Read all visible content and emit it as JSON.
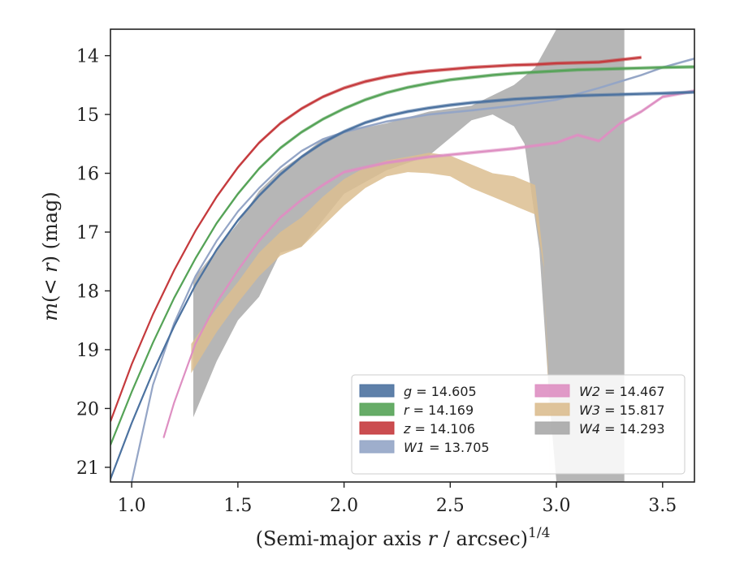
{
  "chart_data": {
    "type": "line",
    "title": "",
    "xlabel": "(Semi-major axis r / arcsec)",
    "xlabel_prefix": "(Semi-major axis ",
    "xlabel_r": "r",
    "xlabel_suffix": " / arcsec)",
    "xlabel_sup": "1/4",
    "ylabel": "m(< r) (mag)",
    "ylabel_m": "m",
    "ylabel_mid": "(< ",
    "ylabel_r": "r",
    "ylabel_end": ") (mag)",
    "xlim": [
      0.9,
      3.65
    ],
    "ylim": [
      21.25,
      13.55
    ],
    "y_inverted": true,
    "xticks": [
      1.0,
      1.5,
      2.0,
      2.5,
      3.0,
      3.5
    ],
    "xtick_labels": [
      "1.0",
      "1.5",
      "2.0",
      "2.5",
      "3.0",
      "3.5"
    ],
    "yticks": [
      14,
      15,
      16,
      17,
      18,
      19,
      20,
      21
    ],
    "ytick_labels": [
      "14",
      "15",
      "16",
      "17",
      "18",
      "19",
      "20",
      "21"
    ],
    "grid": false,
    "legend_position": "lower-right",
    "legend": [
      {
        "band": "g",
        "value": "14.605",
        "color": "#4c72a0",
        "column": 0
      },
      {
        "band": "r",
        "value": "14.169",
        "color": "#55a357",
        "column": 0
      },
      {
        "band": "z",
        "value": "14.106",
        "color": "#c53a3d",
        "column": 0
      },
      {
        "band": "W1",
        "value": "13.705",
        "color": "#94a5c6",
        "column": 0
      },
      {
        "band": "W2",
        "value": "14.467",
        "color": "#de8fc2",
        "column": 1
      },
      {
        "band": "W3",
        "value": "15.817",
        "color": "#dcbe90",
        "column": 1
      },
      {
        "band": "W4",
        "value": "14.293",
        "color": "#a9a9a9",
        "column": 1
      }
    ],
    "series": [
      {
        "name": "g = 14.605",
        "color": "#4c72a0",
        "band_halfwidth": 0.03,
        "x": [
          0.9,
          1.0,
          1.1,
          1.2,
          1.3,
          1.4,
          1.5,
          1.6,
          1.7,
          1.8,
          1.9,
          2.0,
          2.1,
          2.2,
          2.3,
          2.4,
          2.5,
          2.6,
          2.7,
          2.8,
          2.9,
          3.0,
          3.1,
          3.2,
          3.3,
          3.4,
          3.5,
          3.65
        ],
        "y": [
          21.2,
          20.25,
          19.38,
          18.6,
          17.9,
          17.3,
          16.8,
          16.38,
          16.02,
          15.72,
          15.48,
          15.29,
          15.14,
          15.03,
          14.95,
          14.89,
          14.84,
          14.8,
          14.77,
          14.74,
          14.72,
          14.7,
          14.68,
          14.67,
          14.66,
          14.65,
          14.64,
          14.62
        ]
      },
      {
        "name": "r = 14.169",
        "color": "#55a357",
        "band_halfwidth": 0.03,
        "x": [
          0.9,
          1.0,
          1.1,
          1.2,
          1.3,
          1.4,
          1.5,
          1.6,
          1.7,
          1.8,
          1.9,
          2.0,
          2.1,
          2.2,
          2.3,
          2.4,
          2.5,
          2.6,
          2.7,
          2.8,
          2.9,
          3.0,
          3.1,
          3.2,
          3.3,
          3.4,
          3.5,
          3.65
        ],
        "y": [
          20.62,
          19.72,
          18.88,
          18.12,
          17.45,
          16.85,
          16.35,
          15.92,
          15.57,
          15.3,
          15.08,
          14.9,
          14.75,
          14.63,
          14.54,
          14.47,
          14.41,
          14.37,
          14.33,
          14.3,
          14.28,
          14.26,
          14.24,
          14.23,
          14.22,
          14.21,
          14.2,
          14.19
        ]
      },
      {
        "name": "z = 14.106",
        "color": "#c53a3d",
        "band_halfwidth": 0.03,
        "x": [
          0.9,
          1.0,
          1.1,
          1.2,
          1.3,
          1.4,
          1.5,
          1.6,
          1.7,
          1.8,
          1.9,
          2.0,
          2.1,
          2.2,
          2.3,
          2.4,
          2.5,
          2.6,
          2.7,
          2.8,
          2.9,
          3.0,
          3.1,
          3.2,
          3.3,
          3.4
        ],
        "y": [
          20.22,
          19.25,
          18.4,
          17.65,
          16.98,
          16.4,
          15.9,
          15.48,
          15.15,
          14.9,
          14.7,
          14.55,
          14.44,
          14.36,
          14.3,
          14.26,
          14.23,
          14.2,
          14.18,
          14.16,
          14.15,
          14.13,
          14.12,
          14.11,
          14.07,
          14.03
        ]
      },
      {
        "name": "W1 = 13.705",
        "color": "#94a5c6",
        "band_halfwidth": 0.02,
        "x": [
          1.0,
          1.1,
          1.2,
          1.3,
          1.4,
          1.5,
          1.6,
          1.7,
          1.8,
          1.9,
          2.0,
          2.2,
          2.4,
          2.6,
          2.8,
          3.0,
          3.2,
          3.4,
          3.5,
          3.65
        ],
        "y": [
          21.25,
          19.6,
          18.55,
          17.75,
          17.15,
          16.65,
          16.25,
          15.9,
          15.62,
          15.42,
          15.3,
          15.12,
          15.0,
          14.93,
          14.85,
          14.75,
          14.55,
          14.33,
          14.2,
          14.05
        ]
      },
      {
        "name": "W2 = 14.467",
        "color": "#de8fc2",
        "band_halfwidth": 0.03,
        "x": [
          1.15,
          1.2,
          1.3,
          1.4,
          1.5,
          1.6,
          1.7,
          1.8,
          1.9,
          2.0,
          2.2,
          2.4,
          2.6,
          2.8,
          3.0,
          3.1,
          3.2,
          3.3,
          3.4,
          3.5,
          3.65
        ],
        "y": [
          20.5,
          19.9,
          18.9,
          18.2,
          17.65,
          17.15,
          16.75,
          16.45,
          16.2,
          15.98,
          15.82,
          15.72,
          15.65,
          15.58,
          15.48,
          15.35,
          15.45,
          15.15,
          14.95,
          14.7,
          14.6
        ]
      },
      {
        "name": "W3 = 15.817",
        "color": "#dcbe90",
        "band_halfwidth": 0.0,
        "x": [
          1.28,
          1.4,
          1.5,
          1.6,
          1.7,
          1.8,
          1.9,
          2.0,
          2.1,
          2.2,
          2.3,
          2.4,
          2.5,
          2.6,
          2.7,
          2.8,
          2.9,
          2.94,
          2.96,
          2.97,
          2.97,
          2.96,
          2.94,
          2.9,
          2.8,
          2.7,
          2.6,
          2.5,
          2.4,
          2.3,
          2.2,
          2.1,
          2.0,
          1.9,
          1.8,
          1.7,
          1.6,
          1.5,
          1.4,
          1.28
        ],
        "y": [
          18.9,
          18.3,
          17.85,
          17.35,
          17.0,
          16.75,
          16.4,
          16.1,
          15.9,
          15.78,
          15.72,
          15.65,
          15.7,
          15.85,
          16.0,
          16.05,
          16.2,
          17.5,
          19.5,
          21.25,
          21.25,
          19.2,
          17.6,
          16.7,
          16.55,
          16.4,
          16.25,
          16.05,
          16.0,
          15.98,
          16.05,
          16.25,
          16.55,
          16.9,
          17.25,
          17.4,
          17.75,
          18.2,
          18.7,
          19.4
        ]
      },
      {
        "name": "W4 = 14.293",
        "color": "#a9a9a9",
        "band_halfwidth": 0.0,
        "x": [
          1.29,
          1.4,
          1.5,
          1.6,
          1.7,
          1.8,
          1.9,
          2.0,
          2.2,
          2.4,
          2.6,
          2.8,
          2.9,
          3.0,
          3.04,
          3.1,
          3.2,
          3.3,
          3.32,
          3.32,
          3.25,
          3.2,
          3.1,
          3.04,
          3.0,
          2.97,
          2.92,
          2.85,
          2.8,
          2.7,
          2.6,
          2.4,
          2.2,
          2.0,
          1.9,
          1.8,
          1.7,
          1.6,
          1.5,
          1.4,
          1.29
        ],
        "y": [
          17.8,
          17.3,
          16.85,
          16.3,
          15.95,
          15.7,
          15.42,
          15.3,
          15.15,
          14.95,
          14.85,
          14.5,
          14.2,
          13.55,
          13.55,
          13.55,
          13.55,
          13.55,
          13.55,
          21.25,
          21.25,
          21.25,
          21.25,
          21.25,
          21.25,
          20.0,
          17.3,
          15.5,
          15.2,
          15.0,
          15.1,
          15.7,
          15.95,
          16.35,
          16.8,
          17.25,
          17.35,
          18.1,
          18.5,
          19.2,
          20.15
        ]
      }
    ]
  }
}
